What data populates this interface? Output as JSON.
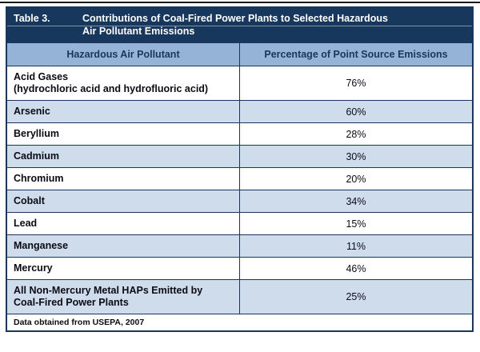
{
  "table": {
    "label": "Table 3.",
    "title": "Contributions of Coal-Fired Power Plants to Selected Hazardous\nAir Pollutant Emissions",
    "columns": [
      "Hazardous Air Pollutant",
      "Percentage of Point Source Emissions"
    ],
    "rows": [
      {
        "pollutant": "Acid Gases\n(hydrochloric acid and hydrofluoric acid)",
        "percentage": "76%"
      },
      {
        "pollutant": "Arsenic",
        "percentage": "60%"
      },
      {
        "pollutant": "Beryllium",
        "percentage": "28%"
      },
      {
        "pollutant": "Cadmium",
        "percentage": "30%"
      },
      {
        "pollutant": "Chromium",
        "percentage": "20%"
      },
      {
        "pollutant": "Cobalt",
        "percentage": "34%"
      },
      {
        "pollutant": "Lead",
        "percentage": "15%"
      },
      {
        "pollutant": "Manganese",
        "percentage": "11%"
      },
      {
        "pollutant": "Mercury",
        "percentage": "46%"
      },
      {
        "pollutant": "All Non-Mercury Metal HAPs Emitted by\nCoal-Fired Power Plants",
        "percentage": "25%"
      }
    ],
    "footnote": "Data obtained from USEPA, 2007"
  },
  "colors": {
    "header_navy": "#17375d",
    "column_header_blue": "#95b3d7",
    "alt_row_blue": "#cfdcec",
    "title_text": "#ffffff"
  }
}
